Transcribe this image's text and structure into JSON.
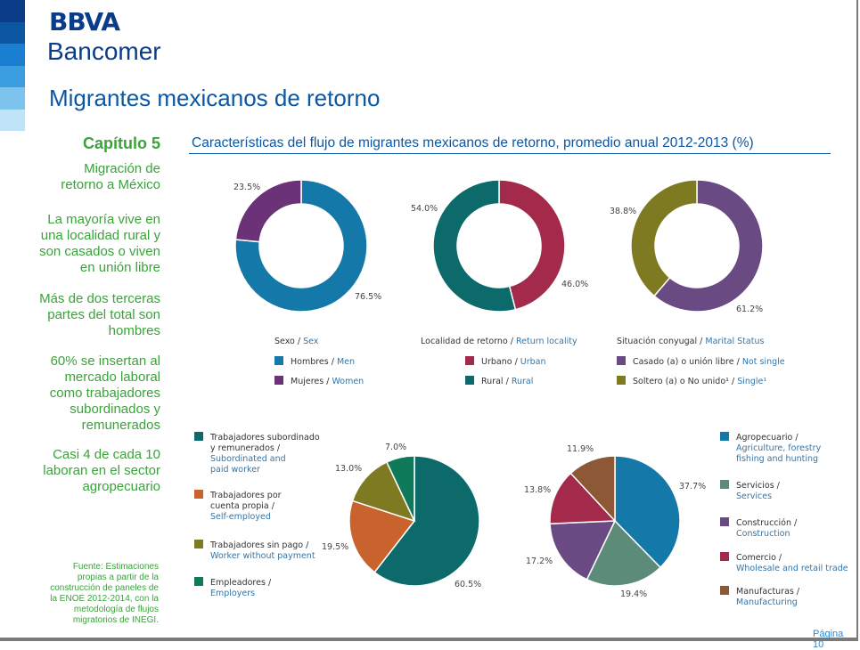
{
  "brand": {
    "line1": "BBVA",
    "line2": "Bancomer"
  },
  "page_title": "Migrantes mexicanos de retorno",
  "sidebar": {
    "chapter": "Capítulo 5",
    "subtitle": [
      "Migración de",
      "retorno a México"
    ],
    "points": [
      [
        "La mayoría vive en",
        "una localidad rural y",
        "son casados o viven",
        "en unión libre"
      ],
      [
        "Más de dos terceras",
        "partes del total son",
        "hombres"
      ],
      [
        "60% se insertan al",
        "mercado laboral",
        "como trabajadores",
        "subordinados y",
        "remunerados"
      ],
      [
        "Casi 4 de cada 10",
        "laboran en el sector",
        "agropecuario"
      ]
    ],
    "source": [
      "Fuente: Estimaciones",
      "propias a partir de la",
      "construcción de paneles de",
      "la ENOE 2012-2014, con la",
      "metodología de flujos",
      "migratorios de INEGI."
    ]
  },
  "page_number": "Página 10",
  "colors": {
    "teal_blue": "#1479a8",
    "purple": "#6b3278",
    "crimson": "#a32a4b",
    "dark_teal": "#0d6a6a",
    "slate_purple": "#6a4a82",
    "olive": "#7d7a22",
    "orange": "#c9632e",
    "green": "#0f7a5a",
    "sage": "#5c8c79",
    "brown": "#8c5836",
    "label_blue": "#3575a6",
    "stripes": [
      "#0a3c8a",
      "#0b57a4",
      "#1a7fd0",
      "#3a9ee0",
      "#7cc4ee",
      "#bfe3f7"
    ]
  },
  "chart_data": [
    {
      "type": "pie",
      "variant": "donut",
      "group_label": "Sexo",
      "group_label_en": "Sex",
      "slices": [
        {
          "label": "Hombres",
          "label_en": "Men",
          "value": 76.5,
          "display": "76.5%"
        },
        {
          "label": "Mujeres",
          "label_en": "Women",
          "value": 23.5,
          "display": "23.5%"
        }
      ]
    },
    {
      "type": "pie",
      "variant": "donut",
      "group_label": "Localidad de retorno",
      "group_label_en": "Return locality",
      "slices": [
        {
          "label": "Urbano",
          "label_en": "Urban",
          "value": 46.0,
          "display": "46.0%"
        },
        {
          "label": "Rural",
          "label_en": "Rural",
          "value": 54.0,
          "display": "54.0%"
        }
      ]
    },
    {
      "type": "pie",
      "variant": "donut",
      "group_label": "Situación conyugal",
      "group_label_en": "Marital Status",
      "slices": [
        {
          "label": "Casado (a) o unión libre",
          "label_en": "Not single",
          "value": 61.2,
          "display": "61.2%"
        },
        {
          "label": "Soltero (a) o No unido¹",
          "label_en": "Single¹",
          "value": 38.8,
          "display": "38.8%"
        }
      ]
    },
    {
      "type": "pie",
      "slices": [
        {
          "label": "Trabajadores subordinados y remunerados /",
          "label_en": "Subordinated and paid worker",
          "value": 60.5,
          "display": "60.5%"
        },
        {
          "label": "Trabajadores por cuenta propia /",
          "label_en": "Self-employed",
          "value": 19.5,
          "display": "19.5%"
        },
        {
          "label": "Trabajadores sin pago /",
          "label_en": "Worker without payment",
          "value": 13.0,
          "display": "13.0%"
        },
        {
          "label": "Empleadores /",
          "label_en": "Employers",
          "value": 7.0,
          "display": "7.0%"
        }
      ]
    },
    {
      "type": "pie",
      "slices": [
        {
          "label": "Agropecuario /",
          "label_en": "Agriculture, forestry fishing and hunting",
          "value": 37.7,
          "display": "37.7%"
        },
        {
          "label": "Servicios /",
          "label_en": "Services",
          "value": 19.4,
          "display": "19.4%"
        },
        {
          "label": "Construcción /",
          "label_en": "Construction",
          "value": 17.2,
          "display": "17.2%"
        },
        {
          "label": "Comercio /",
          "label_en": "Wholesale and retail trade",
          "value": 13.8,
          "display": "13.8%"
        },
        {
          "label": "Manufacturas /",
          "label_en": "Manufacturing",
          "value": 11.9,
          "display": "11.9%"
        }
      ]
    }
  ],
  "chart_title": "Características del flujo de migrantes mexicanos de retorno, promedio anual 2012-2013 (%)"
}
